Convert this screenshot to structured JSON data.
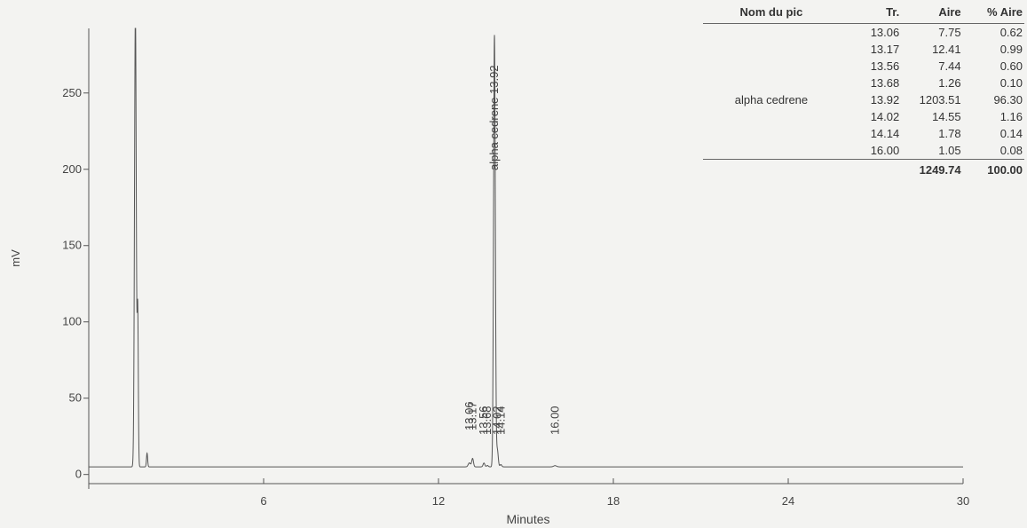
{
  "chart_data": {
    "type": "line",
    "xlabel": "Minutes",
    "ylabel": "mV",
    "xlim": [
      0,
      30
    ],
    "ylim": [
      -6,
      290
    ],
    "x_ticks": [
      6,
      12,
      18,
      24,
      30
    ],
    "y_ticks": [
      0,
      50,
      100,
      150,
      200,
      250
    ],
    "baseline": 5,
    "peaks": [
      {
        "t": 1.6,
        "height": 300,
        "width": 0.03
      },
      {
        "t": 1.68,
        "height": 100,
        "width": 0.02
      },
      {
        "t": 2.0,
        "height": 9,
        "width": 0.02
      },
      {
        "t": 13.06,
        "height": 2.6,
        "width": 0.04
      },
      {
        "t": 13.17,
        "height": 5.5,
        "width": 0.03
      },
      {
        "t": 13.56,
        "height": 2.5,
        "width": 0.03
      },
      {
        "t": 13.68,
        "height": 0.9,
        "width": 0.03
      },
      {
        "t": 13.92,
        "height": 283,
        "width": 0.03
      },
      {
        "t": 14.02,
        "height": 11,
        "width": 0.03
      },
      {
        "t": 14.14,
        "height": 1.5,
        "width": 0.03
      },
      {
        "t": 16.0,
        "height": 0.8,
        "width": 0.05
      }
    ],
    "peak_labels": [
      {
        "t": 13.06,
        "text": "13.06"
      },
      {
        "t": 13.17,
        "text": "13.17"
      },
      {
        "t": 13.56,
        "text": "13.56"
      },
      {
        "t": 13.68,
        "text": "13.68"
      },
      {
        "t": 13.92,
        "text": "alpha cedrene 13.92"
      },
      {
        "t": 14.02,
        "text": "14.02"
      },
      {
        "t": 14.14,
        "text": "14.14"
      },
      {
        "t": 16.0,
        "text": "16.00"
      }
    ]
  },
  "table": {
    "headers": [
      "Nom du pic",
      "Tr.",
      "Aire",
      "% Aire"
    ],
    "rows": [
      {
        "name": "",
        "tr": "13.06",
        "area": "7.75",
        "pct": "0.62"
      },
      {
        "name": "",
        "tr": "13.17",
        "area": "12.41",
        "pct": "0.99"
      },
      {
        "name": "",
        "tr": "13.56",
        "area": "7.44",
        "pct": "0.60"
      },
      {
        "name": "",
        "tr": "13.68",
        "area": "1.26",
        "pct": "0.10"
      },
      {
        "name": "alpha cedrene",
        "tr": "13.92",
        "area": "1203.51",
        "pct": "96.30"
      },
      {
        "name": "",
        "tr": "14.02",
        "area": "14.55",
        "pct": "1.16"
      },
      {
        "name": "",
        "tr": "14.14",
        "area": "1.78",
        "pct": "0.14"
      },
      {
        "name": "",
        "tr": "16.00",
        "area": "1.05",
        "pct": "0.08"
      }
    ],
    "total": {
      "name": "",
      "tr": "",
      "area": "1249.74",
      "pct": "100.00"
    }
  }
}
